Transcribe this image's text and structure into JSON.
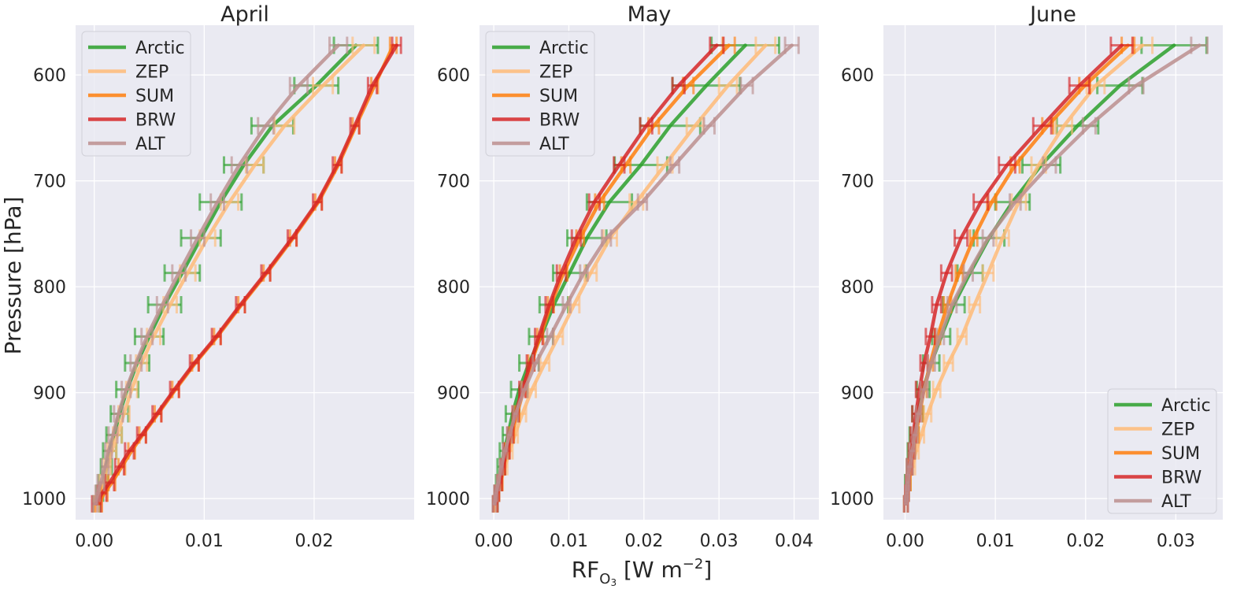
{
  "figure": {
    "ylabel": "Pressure [hPa]",
    "xlabel_main": "RF",
    "xlabel_sub": "O",
    "xlabel_subsub": "3",
    "xlabel_rest": " [W m",
    "xlabel_sup": "−2",
    "xlabel_end": "]"
  },
  "colors": {
    "Arctic": "#2ca02c",
    "ZEP": "#ffbb78",
    "SUM": "#ff7f0e",
    "BRW": "#d62728",
    "ALT": "#bc8f8f",
    "panel_bg": "#eaeaf2",
    "grid": "#ffffff"
  },
  "chart_data": [
    {
      "type": "line",
      "title": "April",
      "xlim": [
        -0.0017,
        0.0291
      ],
      "ylim": [
        1020,
        553
      ],
      "y_inverted": true,
      "xticks": [
        0.0,
        0.01,
        0.02
      ],
      "xtick_labels": [
        "0.00",
        "0.01",
        "0.02"
      ],
      "yticks": [
        600,
        700,
        800,
        900,
        1000
      ],
      "ytick_labels": [
        "600",
        "700",
        "800",
        "900",
        "1000"
      ],
      "grid": true,
      "legend_position": "upper left",
      "pressure": [
        1005,
        995,
        985,
        970,
        955,
        940,
        920,
        897,
        872,
        847,
        817,
        787,
        754,
        720,
        685,
        648,
        610,
        572
      ],
      "series": [
        {
          "name": "Arctic",
          "values": [
            0.0002,
            0.0005,
            0.0008,
            0.0011,
            0.0014,
            0.0018,
            0.0023,
            0.003,
            0.0039,
            0.005,
            0.0064,
            0.008,
            0.0097,
            0.0115,
            0.0136,
            0.0162,
            0.0202,
            0.0238
          ],
          "err": [
            0.0003,
            0.0003,
            0.0004,
            0.0005,
            0.0006,
            0.0007,
            0.0008,
            0.001,
            0.0011,
            0.0013,
            0.0015,
            0.0016,
            0.0018,
            0.0019,
            0.0018,
            0.0019,
            0.002,
            0.002
          ]
        },
        {
          "name": "ZEP",
          "values": [
            0.0002,
            0.0005,
            0.0008,
            0.0012,
            0.0016,
            0.0021,
            0.0027,
            0.0034,
            0.0043,
            0.0054,
            0.0069,
            0.0085,
            0.0103,
            0.0123,
            0.0146,
            0.0173,
            0.0208,
            0.0245
          ],
          "err": [
            0.0002,
            0.0002,
            0.0003,
            0.0003,
            0.0004,
            0.0004,
            0.0005,
            0.0005,
            0.0005,
            0.0006,
            0.0006,
            0.0007,
            0.0007,
            0.0008,
            0.0008,
            0.0009,
            0.0009,
            0.001
          ]
        },
        {
          "name": "SUM",
          "values": [
            0.0004,
            0.0009,
            0.0016,
            0.0025,
            0.0034,
            0.0044,
            0.0058,
            0.0074,
            0.0092,
            0.0112,
            0.0134,
            0.0157,
            0.0181,
            0.0204,
            0.0222,
            0.0238,
            0.0255,
            0.0272
          ],
          "err": [
            0.0003,
            0.0003,
            0.0003,
            0.0003,
            0.0003,
            0.0003,
            0.0003,
            0.0003,
            0.0003,
            0.0003,
            0.0003,
            0.0003,
            0.0003,
            0.0003,
            0.0003,
            0.0003,
            0.0003,
            0.0003
          ]
        },
        {
          "name": "BRW",
          "values": [
            0.0002,
            0.0007,
            0.0014,
            0.0023,
            0.0032,
            0.0043,
            0.0057,
            0.0073,
            0.0091,
            0.0111,
            0.0133,
            0.0156,
            0.018,
            0.0203,
            0.0221,
            0.0237,
            0.0253,
            0.0275
          ],
          "err": [
            0.0004,
            0.0004,
            0.0004,
            0.0004,
            0.0004,
            0.0004,
            0.0004,
            0.0004,
            0.0004,
            0.0004,
            0.0004,
            0.0004,
            0.0004,
            0.0004,
            0.0004,
            0.0004,
            0.0004,
            0.0004
          ]
        },
        {
          "name": "ALT",
          "values": [
            0.0001,
            0.0003,
            0.0006,
            0.001,
            0.0013,
            0.0017,
            0.0022,
            0.0029,
            0.0038,
            0.0048,
            0.0062,
            0.0077,
            0.0094,
            0.0112,
            0.0132,
            0.0156,
            0.0186,
            0.0222
          ],
          "err": [
            0.0002,
            0.0002,
            0.0003,
            0.0003,
            0.0003,
            0.0004,
            0.0004,
            0.0004,
            0.0005,
            0.0005,
            0.0005,
            0.0006,
            0.0006,
            0.0006,
            0.0007,
            0.0007,
            0.0008,
            0.0008
          ]
        }
      ]
    },
    {
      "type": "line",
      "title": "May",
      "xlim": [
        -0.0019,
        0.0433
      ],
      "ylim": [
        1020,
        553
      ],
      "y_inverted": true,
      "xticks": [
        0.0,
        0.01,
        0.02,
        0.03,
        0.04
      ],
      "xtick_labels": [
        "0.00",
        "0.01",
        "0.02",
        "0.03",
        "0.04"
      ],
      "yticks": [
        600,
        700,
        800,
        900,
        1000
      ],
      "ytick_labels": [
        "600",
        "700",
        "800",
        "900",
        "1000"
      ],
      "grid": true,
      "legend_position": "upper left",
      "pressure": [
        1005,
        995,
        985,
        970,
        955,
        940,
        920,
        897,
        872,
        847,
        817,
        787,
        754,
        720,
        685,
        648,
        610,
        572
      ],
      "series": [
        {
          "name": "Arctic",
          "values": [
            0.0002,
            0.0004,
            0.0007,
            0.001,
            0.0014,
            0.0019,
            0.0025,
            0.0034,
            0.0047,
            0.0063,
            0.008,
            0.0101,
            0.0124,
            0.0154,
            0.0196,
            0.0235,
            0.0283,
            0.0335
          ],
          "err": [
            0.0003,
            0.0003,
            0.0004,
            0.0005,
            0.0006,
            0.0007,
            0.0009,
            0.0011,
            0.0013,
            0.0016,
            0.0019,
            0.0022,
            0.0026,
            0.003,
            0.0035,
            0.004,
            0.0045,
            0.0045
          ]
        },
        {
          "name": "ZEP",
          "values": [
            0.0002,
            0.0005,
            0.0009,
            0.0015,
            0.0021,
            0.0028,
            0.0038,
            0.0051,
            0.0068,
            0.0086,
            0.0107,
            0.0129,
            0.0155,
            0.019,
            0.0228,
            0.0268,
            0.0312,
            0.0362
          ],
          "err": [
            0.0002,
            0.0002,
            0.0003,
            0.0003,
            0.0004,
            0.0004,
            0.0005,
            0.0005,
            0.0006,
            0.0006,
            0.0007,
            0.0008,
            0.0009,
            0.0009,
            0.001,
            0.0011,
            0.0012,
            0.0013
          ]
        },
        {
          "name": "SUM",
          "values": [
            0.0002,
            0.0005,
            0.0009,
            0.0013,
            0.0018,
            0.0024,
            0.0031,
            0.004,
            0.005,
            0.0062,
            0.0076,
            0.0093,
            0.0115,
            0.0141,
            0.0176,
            0.0213,
            0.0259,
            0.0313
          ],
          "err": [
            0.0002,
            0.0002,
            0.0002,
            0.0002,
            0.0003,
            0.0003,
            0.0003,
            0.0003,
            0.0004,
            0.0004,
            0.0004,
            0.0005,
            0.0005,
            0.0006,
            0.0006,
            0.0007,
            0.0007,
            0.0008
          ]
        },
        {
          "name": "BRW",
          "values": [
            0.0002,
            0.0004,
            0.0008,
            0.0012,
            0.0017,
            0.0022,
            0.0029,
            0.0038,
            0.0049,
            0.006,
            0.0074,
            0.009,
            0.011,
            0.0134,
            0.0167,
            0.0203,
            0.0246,
            0.0297
          ],
          "err": [
            0.0003,
            0.0003,
            0.0003,
            0.0003,
            0.0004,
            0.0004,
            0.0004,
            0.0004,
            0.0005,
            0.0005,
            0.0005,
            0.0006,
            0.0006,
            0.0007,
            0.0007,
            0.0008,
            0.0008,
            0.0009
          ]
        },
        {
          "name": "ALT",
          "values": [
            0.0001,
            0.0003,
            0.0006,
            0.001,
            0.0015,
            0.0021,
            0.0029,
            0.0041,
            0.0056,
            0.0075,
            0.0097,
            0.012,
            0.015,
            0.0198,
            0.0241,
            0.0287,
            0.0337,
            0.0397
          ],
          "err": [
            0.0002,
            0.0002,
            0.0002,
            0.0002,
            0.0003,
            0.0003,
            0.0003,
            0.0004,
            0.0004,
            0.0004,
            0.0005,
            0.0005,
            0.0006,
            0.0006,
            0.0006,
            0.0007,
            0.0008,
            0.0009
          ]
        }
      ]
    },
    {
      "type": "line",
      "title": "June",
      "xlim": [
        -0.0024,
        0.0352
      ],
      "ylim": [
        1020,
        553
      ],
      "y_inverted": true,
      "xticks": [
        0.0,
        0.01,
        0.02,
        0.03
      ],
      "xtick_labels": [
        "0.00",
        "0.01",
        "0.02",
        "0.03"
      ],
      "yticks": [
        600,
        700,
        800,
        900,
        1000
      ],
      "ytick_labels": [
        "600",
        "700",
        "800",
        "900",
        "1000"
      ],
      "grid": true,
      "legend_position": "lower right",
      "pressure": [
        1005,
        995,
        985,
        970,
        955,
        940,
        920,
        897,
        872,
        847,
        817,
        787,
        754,
        720,
        685,
        648,
        610,
        572
      ],
      "series": [
        {
          "name": "Arctic",
          "values": [
            0.0001,
            0.0002,
            0.0003,
            0.0005,
            0.0007,
            0.001,
            0.0014,
            0.002,
            0.0029,
            0.004,
            0.0054,
            0.0072,
            0.0093,
            0.0119,
            0.0151,
            0.0191,
            0.0238,
            0.0298
          ],
          "err": [
            0.0002,
            0.0002,
            0.0003,
            0.0003,
            0.0004,
            0.0005,
            0.0006,
            0.0007,
            0.0009,
            0.001,
            0.0012,
            0.0014,
            0.0017,
            0.0019,
            0.0021,
            0.0023,
            0.0025,
            0.0036
          ]
        },
        {
          "name": "ZEP",
          "values": [
            0.0001,
            0.0002,
            0.0004,
            0.0008,
            0.0012,
            0.0018,
            0.0025,
            0.0035,
            0.0048,
            0.0063,
            0.0077,
            0.0092,
            0.0108,
            0.0126,
            0.0148,
            0.0176,
            0.0211,
            0.0263
          ],
          "err": [
            0.0002,
            0.0002,
            0.0002,
            0.0003,
            0.0003,
            0.0003,
            0.0004,
            0.0004,
            0.0005,
            0.0005,
            0.0006,
            0.0006,
            0.0007,
            0.0008,
            0.0008,
            0.0009,
            0.001,
            0.0011
          ]
        },
        {
          "name": "SUM",
          "values": [
            0.0001,
            0.0002,
            0.0004,
            0.0006,
            0.0009,
            0.0012,
            0.0016,
            0.0021,
            0.0028,
            0.0036,
            0.0047,
            0.006,
            0.0076,
            0.0096,
            0.0122,
            0.0158,
            0.0199,
            0.0247
          ],
          "err": [
            0.0002,
            0.0002,
            0.0002,
            0.0002,
            0.0002,
            0.0003,
            0.0003,
            0.0003,
            0.0003,
            0.0003,
            0.0004,
            0.0004,
            0.0004,
            0.0005,
            0.0005,
            0.0006,
            0.0006,
            0.0007
          ]
        },
        {
          "name": "BRW",
          "values": [
            0.0001,
            0.0002,
            0.0003,
            0.0005,
            0.0007,
            0.0009,
            0.0012,
            0.0016,
            0.0021,
            0.0028,
            0.0035,
            0.0046,
            0.0062,
            0.0084,
            0.0113,
            0.0152,
            0.0193,
            0.024
          ],
          "err": [
            0.0002,
            0.0002,
            0.0002,
            0.0003,
            0.0003,
            0.0003,
            0.0004,
            0.0004,
            0.0004,
            0.0005,
            0.0005,
            0.0006,
            0.0007,
            0.0008,
            0.0009,
            0.001,
            0.0011,
            0.0012
          ]
        },
        {
          "name": "ALT",
          "values": [
            0.0001,
            0.0002,
            0.0003,
            0.0005,
            0.0008,
            0.0011,
            0.0015,
            0.0021,
            0.0029,
            0.0039,
            0.0052,
            0.007,
            0.0092,
            0.0122,
            0.016,
            0.0204,
            0.0256,
            0.0326
          ],
          "err": [
            0.0002,
            0.0002,
            0.0002,
            0.0003,
            0.0003,
            0.0003,
            0.0003,
            0.0004,
            0.0004,
            0.0004,
            0.0005,
            0.0005,
            0.0006,
            0.0006,
            0.0007,
            0.0007,
            0.0008,
            0.0009
          ]
        }
      ]
    }
  ]
}
